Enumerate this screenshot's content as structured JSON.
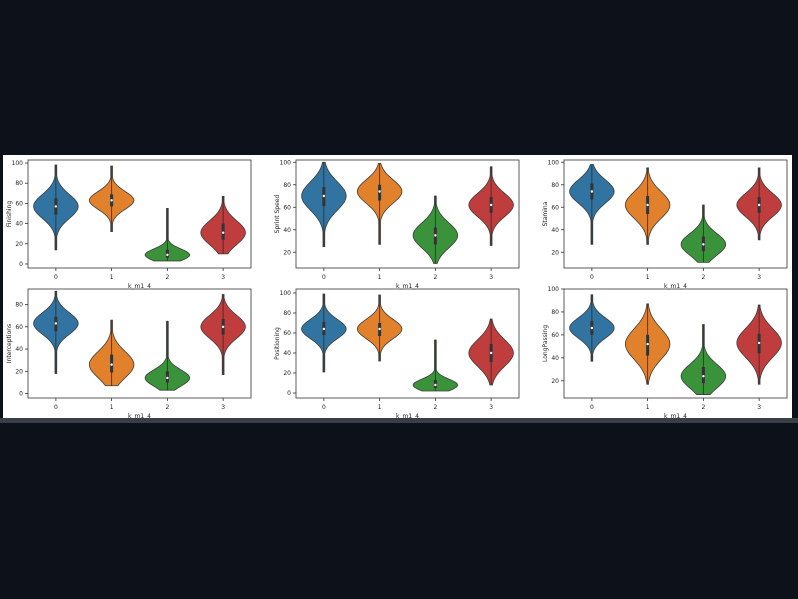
{
  "chart_data": [
    {
      "type": "violin",
      "xlabel": "k_m1_4",
      "ylabel": "Finishing",
      "categories": [
        "0",
        "1",
        "2",
        "3"
      ],
      "ylim": [
        -4,
        103
      ],
      "yticks": [
        "0",
        "20",
        "40",
        "60",
        "80",
        "100"
      ],
      "colors": [
        "#3274a1",
        "#e1812c",
        "#3a923a",
        "#c03d3e"
      ],
      "series": [
        {
          "category": "0",
          "min": 14,
          "q1": 49,
          "median": 57,
          "q3": 65,
          "max": 98
        },
        {
          "category": "1",
          "min": 32,
          "q1": 57,
          "median": 63,
          "q3": 69,
          "max": 97
        },
        {
          "category": "2",
          "min": 3,
          "q1": 6,
          "median": 9,
          "q3": 14,
          "max": 55
        },
        {
          "category": "3",
          "min": 10,
          "q1": 24,
          "median": 31,
          "q3": 40,
          "max": 67
        }
      ]
    },
    {
      "type": "violin",
      "xlabel": "k_m1_4",
      "ylabel": "Sprint Speed",
      "categories": [
        "0",
        "1",
        "2",
        "3"
      ],
      "ylim": [
        6,
        102
      ],
      "yticks": [
        "20",
        "40",
        "60",
        "80",
        "100"
      ],
      "colors": [
        "#3274a1",
        "#e1812c",
        "#3a923a",
        "#c03d3e"
      ],
      "series": [
        {
          "category": "0",
          "min": 25,
          "q1": 61,
          "median": 70,
          "q3": 78,
          "max": 100
        },
        {
          "category": "1",
          "min": 27,
          "q1": 66,
          "median": 74,
          "q3": 80,
          "max": 99
        },
        {
          "category": "2",
          "min": 10,
          "q1": 27,
          "median": 35,
          "q3": 42,
          "max": 70
        },
        {
          "category": "3",
          "min": 26,
          "q1": 55,
          "median": 62,
          "q3": 69,
          "max": 96
        }
      ]
    },
    {
      "type": "violin",
      "xlabel": "k_m1_4",
      "ylabel": "Stamina",
      "categories": [
        "0",
        "1",
        "2",
        "3"
      ],
      "ylim": [
        6,
        102
      ],
      "yticks": [
        "20",
        "40",
        "60",
        "80",
        "100"
      ],
      "colors": [
        "#3274a1",
        "#e1812c",
        "#3a923a",
        "#c03d3e"
      ],
      "series": [
        {
          "category": "0",
          "min": 27,
          "q1": 67,
          "median": 74,
          "q3": 81,
          "max": 98
        },
        {
          "category": "1",
          "min": 27,
          "q1": 54,
          "median": 62,
          "q3": 70,
          "max": 95
        },
        {
          "category": "2",
          "min": 11,
          "q1": 21,
          "median": 27,
          "q3": 34,
          "max": 62
        },
        {
          "category": "3",
          "min": 31,
          "q1": 55,
          "median": 62,
          "q3": 69,
          "max": 95
        }
      ]
    },
    {
      "type": "violin",
      "xlabel": "k_m1_4",
      "ylabel": "Interceptions",
      "categories": [
        "0",
        "1",
        "2",
        "3"
      ],
      "ylim": [
        -4,
        94
      ],
      "yticks": [
        "0",
        "20",
        "40",
        "60",
        "80"
      ],
      "colors": [
        "#3274a1",
        "#e1812c",
        "#3a923a",
        "#c03d3e"
      ],
      "series": [
        {
          "category": "0",
          "min": 18,
          "q1": 56,
          "median": 63,
          "q3": 69,
          "max": 92
        },
        {
          "category": "1",
          "min": 7,
          "q1": 19,
          "median": 26,
          "q3": 35,
          "max": 66
        },
        {
          "category": "2",
          "min": 3,
          "q1": 10,
          "median": 14,
          "q3": 20,
          "max": 65
        },
        {
          "category": "3",
          "min": 17,
          "q1": 53,
          "median": 60,
          "q3": 67,
          "max": 89
        }
      ]
    },
    {
      "type": "violin",
      "xlabel": "k_m1_4",
      "ylabel": "Positioning",
      "categories": [
        "0",
        "1",
        "2",
        "3"
      ],
      "ylim": [
        -5,
        104
      ],
      "yticks": [
        "0",
        "20",
        "40",
        "60",
        "80",
        "100"
      ],
      "colors": [
        "#3274a1",
        "#e1812c",
        "#3a923a",
        "#c03d3e"
      ],
      "series": [
        {
          "category": "0",
          "min": 21,
          "q1": 58,
          "median": 64,
          "q3": 71,
          "max": 99
        },
        {
          "category": "1",
          "min": 32,
          "q1": 57,
          "median": 64,
          "q3": 70,
          "max": 98
        },
        {
          "category": "2",
          "min": 2,
          "q1": 5,
          "median": 8,
          "q3": 13,
          "max": 53
        },
        {
          "category": "3",
          "min": 8,
          "q1": 31,
          "median": 40,
          "q3": 49,
          "max": 74
        }
      ]
    },
    {
      "type": "violin",
      "xlabel": "k_m1_4",
      "ylabel": "LongPassing",
      "categories": [
        "0",
        "1",
        "2",
        "3"
      ],
      "ylim": [
        5,
        100
      ],
      "yticks": [
        "20",
        "40",
        "60",
        "80",
        "100"
      ],
      "colors": [
        "#3274a1",
        "#e1812c",
        "#3a923a",
        "#c03d3e"
      ],
      "series": [
        {
          "category": "0",
          "min": 37,
          "q1": 60,
          "median": 66,
          "q3": 72,
          "max": 95
        },
        {
          "category": "1",
          "min": 17,
          "q1": 42,
          "median": 52,
          "q3": 60,
          "max": 87
        },
        {
          "category": "2",
          "min": 8,
          "q1": 18,
          "median": 24,
          "q3": 32,
          "max": 69
        },
        {
          "category": "3",
          "min": 17,
          "q1": 44,
          "median": 53,
          "q3": 61,
          "max": 86
        }
      ]
    }
  ]
}
